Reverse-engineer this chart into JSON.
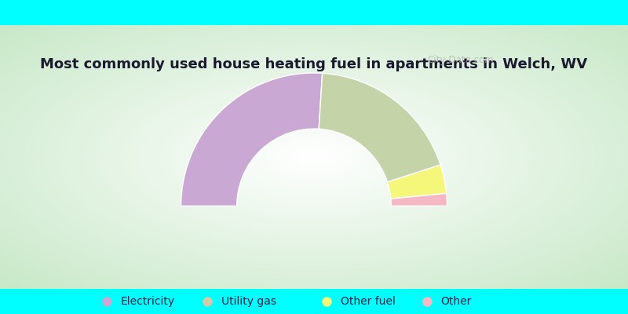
{
  "title": "Most commonly used house heating fuel in apartments in Welch, WV",
  "title_color": "#1a1a2e",
  "cyan_color": "#00ffff",
  "segments": [
    {
      "label": "Electricity",
      "value": 52,
      "color": "#c9a8d4"
    },
    {
      "label": "Utility gas",
      "value": 38,
      "color": "#c5d4a8"
    },
    {
      "label": "Other fuel",
      "value": 7,
      "color": "#f5f77a"
    },
    {
      "label": "Other",
      "value": 3,
      "color": "#f5b8c4"
    }
  ],
  "legend_colors": [
    "#c9a8d4",
    "#d4c9a8",
    "#f5f77a",
    "#f5b8c4"
  ],
  "legend_labels": [
    "Electricity",
    "Utility gas",
    "Other fuel",
    "Other"
  ],
  "watermark": "City-Data.com",
  "fig_width": 8.0,
  "fig_height": 4.0,
  "dpi": 100,
  "outer_r": 1.0,
  "inner_r": 0.58,
  "gradient_colors": [
    "#c8e6c8",
    "#e8f5e8",
    "#f5faf5",
    "#ffffff"
  ],
  "title_fontsize": 13,
  "legend_fontsize": 10,
  "legend_spacings": [
    0.17,
    0.33,
    0.52,
    0.68
  ]
}
